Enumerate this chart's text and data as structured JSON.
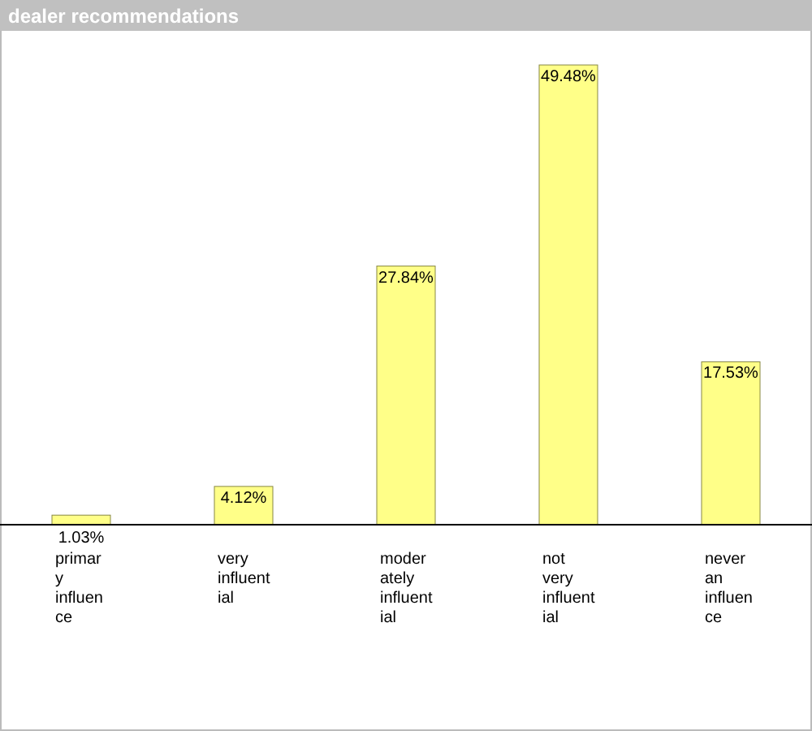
{
  "chart_data": {
    "type": "bar",
    "title": "dealer recommendations",
    "categories": [
      "primary influence",
      "very influential",
      "moderately influential",
      "not very influential",
      "never an influence"
    ],
    "values": [
      1.03,
      4.12,
      27.84,
      49.48,
      17.53
    ],
    "color": "#ffff88",
    "value_labels": [
      "1.03%",
      "4.12%",
      "27.84%",
      "49.48%",
      "17.53%"
    ],
    "tick_labels": "x"
  }
}
